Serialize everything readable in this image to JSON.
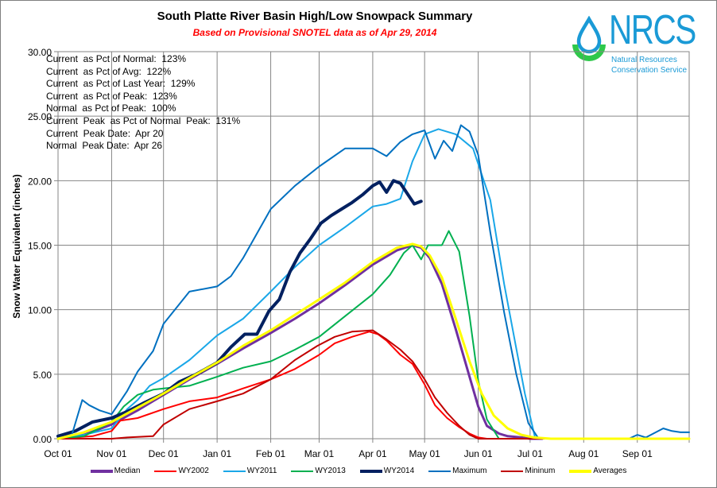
{
  "chart_data": {
    "type": "line",
    "title": "South Platte River Basin High/Low Snowpack Summary",
    "subtitle": "Based on Provisional SNOTEL data as of Apr 29, 2014",
    "xlabel": "",
    "ylabel": "Snow Water Equivalent (inches)",
    "ylim": [
      0,
      30
    ],
    "xlim_days": [
      0,
      365
    ],
    "grid": true,
    "legend_position": "bottom",
    "x_ticks": [
      {
        "label": "Oct 01",
        "day": 0
      },
      {
        "label": "Nov 01",
        "day": 31
      },
      {
        "label": "Dec 01",
        "day": 61
      },
      {
        "label": "Jan 01",
        "day": 92
      },
      {
        "label": "Feb 01",
        "day": 123
      },
      {
        "label": "Mar 01",
        "day": 151
      },
      {
        "label": "Apr 01",
        "day": 182
      },
      {
        "label": "May 01",
        "day": 212
      },
      {
        "label": "Jun 01",
        "day": 243
      },
      {
        "label": "Jul 01",
        "day": 273
      },
      {
        "label": "Aug 01",
        "day": 304
      },
      {
        "label": "Sep 01",
        "day": 335
      }
    ],
    "y_ticks": [
      "0.00",
      "5.00",
      "10.00",
      "15.00",
      "20.00",
      "25.00",
      "30.00"
    ],
    "y_tick_values": [
      0,
      5,
      10,
      15,
      20,
      25,
      30
    ],
    "annotations": [
      "Current  as Pct of Normal:  123%",
      "Current  as Pct of Avg:  122%",
      "Current  as Pct of Last Year:  129%",
      "Current  as Pct of Peak:  123%",
      "Normal  as Pct of Peak:  100%",
      "Current  Peak  as Pct of Normal  Peak:  131%",
      "Current  Peak Date:  Apr 20",
      "Normal  Peak Date:  Apr 26"
    ],
    "series": [
      {
        "name": "Median",
        "color": "#7030a0",
        "width": 3,
        "x": [
          0,
          15,
          31,
          46,
          61,
          76,
          92,
          107,
          123,
          137,
          151,
          166,
          182,
          196,
          205,
          210,
          215,
          222,
          230,
          238,
          243,
          248,
          255,
          260,
          268,
          273,
          280
        ],
        "y": [
          0,
          0.3,
          1.1,
          2.2,
          3.4,
          4.6,
          5.8,
          7.0,
          8.2,
          9.3,
          10.5,
          11.9,
          13.5,
          14.6,
          15.0,
          14.8,
          14.0,
          12.0,
          8.5,
          4.8,
          2.5,
          1.0,
          0.4,
          0.2,
          0.1,
          0,
          0
        ]
      },
      {
        "name": "WY2002",
        "color": "#ff0000",
        "width": 2,
        "x": [
          0,
          20,
          31,
          36,
          46,
          61,
          76,
          92,
          107,
          123,
          137,
          151,
          160,
          170,
          180,
          185,
          190,
          198,
          205,
          212,
          218,
          225,
          232,
          238,
          243,
          248,
          365
        ],
        "y": [
          0,
          0.2,
          0.6,
          1.4,
          1.6,
          2.3,
          2.9,
          3.2,
          3.9,
          4.6,
          5.4,
          6.5,
          7.4,
          7.9,
          8.3,
          8.1,
          7.6,
          6.5,
          5.8,
          4.2,
          2.6,
          1.6,
          0.9,
          0.4,
          0.1,
          0,
          0
        ]
      },
      {
        "name": "WY2011",
        "color": "#1aa7e8",
        "width": 2,
        "x": [
          0,
          15,
          31,
          40,
          46,
          53,
          61,
          76,
          92,
          107,
          123,
          137,
          151,
          166,
          182,
          190,
          198,
          205,
          212,
          220,
          230,
          240,
          250,
          258,
          265,
          270,
          276,
          365
        ],
        "y": [
          0.1,
          0.3,
          0.8,
          2.3,
          3.0,
          4.1,
          4.7,
          6.1,
          8.0,
          9.3,
          11.4,
          13.3,
          15.0,
          16.4,
          18.0,
          18.2,
          18.6,
          21.5,
          23.6,
          24.0,
          23.6,
          22.5,
          18.5,
          12.0,
          7.0,
          3.5,
          0,
          0
        ]
      },
      {
        "name": "WY2013",
        "color": "#00b050",
        "width": 2,
        "x": [
          0,
          15,
          31,
          38,
          46,
          55,
          61,
          76,
          92,
          107,
          123,
          137,
          151,
          166,
          182,
          192,
          200,
          205,
          210,
          214,
          222,
          226,
          232,
          238,
          243,
          248,
          255,
          365
        ],
        "y": [
          0,
          0.2,
          1.3,
          2.5,
          3.4,
          3.8,
          3.9,
          4.1,
          4.8,
          5.5,
          6.0,
          6.9,
          7.9,
          9.5,
          11.2,
          12.7,
          14.4,
          15.0,
          13.9,
          15.0,
          15.0,
          16.1,
          14.5,
          9.5,
          4.5,
          1.5,
          0,
          0
        ]
      },
      {
        "name": "WY2014",
        "color": "#002060",
        "width": 4,
        "x": [
          0,
          10,
          20,
          31,
          40,
          50,
          61,
          70,
          80,
          92,
          100,
          108,
          115,
          122,
          128,
          134,
          140,
          146,
          152,
          158,
          164,
          170,
          176,
          182,
          186,
          190,
          194,
          198,
          202,
          206,
          210
        ],
        "y": [
          0.2,
          0.6,
          1.3,
          1.6,
          2.1,
          2.8,
          3.5,
          4.4,
          5.0,
          5.9,
          7.1,
          8.1,
          8.1,
          9.9,
          10.8,
          12.9,
          14.4,
          15.5,
          16.7,
          17.3,
          17.8,
          18.3,
          18.9,
          19.6,
          19.9,
          19.1,
          20.0,
          19.8,
          19.0,
          18.2,
          18.4
        ]
      },
      {
        "name": "Maximum",
        "color": "#0070c0",
        "width": 2,
        "x": [
          0,
          8,
          14,
          18,
          24,
          31,
          40,
          46,
          55,
          61,
          76,
          92,
          100,
          107,
          115,
          123,
          137,
          151,
          166,
          182,
          190,
          198,
          205,
          212,
          218,
          223,
          228,
          233,
          238,
          243,
          250,
          258,
          265,
          272,
          278,
          330,
          335,
          340,
          350,
          355,
          360,
          365
        ],
        "y": [
          0,
          0.3,
          3.0,
          2.6,
          2.2,
          1.9,
          3.7,
          5.2,
          6.8,
          8.9,
          11.4,
          11.8,
          12.6,
          14.0,
          15.9,
          17.8,
          19.6,
          21.1,
          22.5,
          22.5,
          21.9,
          23.0,
          23.6,
          23.9,
          21.7,
          23.1,
          22.3,
          24.3,
          23.8,
          22.0,
          16.0,
          9.8,
          5.0,
          1.2,
          0,
          0,
          0.3,
          0.1,
          0.8,
          0.6,
          0.5,
          0.5
        ]
      },
      {
        "name": "Mininum",
        "color": "#c00000",
        "width": 2,
        "x": [
          0,
          31,
          40,
          55,
          61,
          76,
          92,
          107,
          123,
          137,
          150,
          160,
          170,
          182,
          190,
          198,
          205,
          212,
          218,
          225,
          232,
          238,
          243,
          365
        ],
        "y": [
          0,
          0,
          0.1,
          0.2,
          1.1,
          2.3,
          2.9,
          3.5,
          4.6,
          6.1,
          7.2,
          7.9,
          8.3,
          8.4,
          7.7,
          6.9,
          6.0,
          4.6,
          3.2,
          2.0,
          1.0,
          0.3,
          0,
          0
        ]
      },
      {
        "name": "Averages",
        "color": "#ffff00",
        "width": 3,
        "x": [
          0,
          15,
          31,
          46,
          61,
          76,
          92,
          107,
          123,
          137,
          151,
          166,
          182,
          196,
          205,
          210,
          215,
          222,
          230,
          238,
          245,
          252,
          260,
          268,
          275,
          285,
          365
        ],
        "y": [
          0,
          0.5,
          1.3,
          2.4,
          3.5,
          4.7,
          5.9,
          7.2,
          8.4,
          9.6,
          10.8,
          12.1,
          13.7,
          14.8,
          15.1,
          14.9,
          14.2,
          12.5,
          9.3,
          6.0,
          3.5,
          1.8,
          0.8,
          0.3,
          0.1,
          0,
          0
        ]
      }
    ]
  },
  "logo": {
    "name": "NRCS",
    "line1": "Natural Resources",
    "line2": "Conservation Service"
  }
}
